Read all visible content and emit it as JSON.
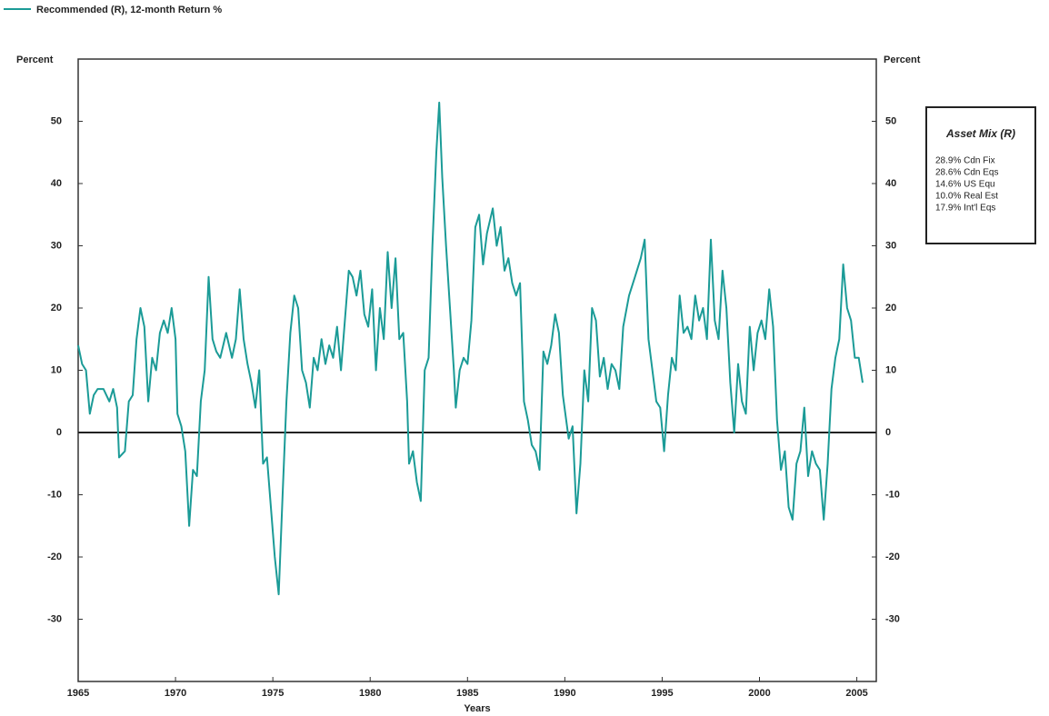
{
  "chart_data": {
    "type": "line",
    "legend_label": "Recommended (R), 12-month Return %",
    "y_label": "Percent",
    "y2_label": "Percent",
    "x_label": "Years",
    "xlim": [
      1965,
      2006
    ],
    "xticks": [
      1965,
      1970,
      1975,
      1980,
      1985,
      1990,
      1995,
      2000,
      2005
    ],
    "ylim": [
      -40,
      60
    ],
    "yticks": [
      -30,
      -20,
      -10,
      0,
      10,
      20,
      30,
      40,
      50
    ],
    "y2lim": [
      -40,
      60
    ],
    "y2ticks": [
      -30,
      -20,
      -10,
      0,
      10,
      20,
      30,
      40,
      50
    ],
    "annotation_box": {
      "title": "Asset Mix (R)",
      "lines": [
        "28.9% Cdn Fix",
        "28.6% Cdn Eqs",
        "14.6% US Equ",
        "10.0% Real Est",
        "17.9% Int'l Eqs"
      ]
    },
    "series": [
      {
        "name": "Recommended (R), 12-month Return %",
        "color": "#1b9b97",
        "x": [
          1965.0,
          1965.2,
          1965.4,
          1965.6,
          1965.8,
          1966.0,
          1966.3,
          1966.6,
          1966.8,
          1967.0,
          1967.1,
          1967.4,
          1967.6,
          1967.8,
          1968.0,
          1968.2,
          1968.4,
          1968.6,
          1968.8,
          1969.0,
          1969.2,
          1969.4,
          1969.6,
          1969.8,
          1970.0,
          1970.1,
          1970.3,
          1970.5,
          1970.7,
          1970.9,
          1971.1,
          1971.3,
          1971.5,
          1971.7,
          1971.9,
          1972.1,
          1972.3,
          1972.6,
          1972.9,
          1973.1,
          1973.3,
          1973.5,
          1973.7,
          1973.9,
          1974.1,
          1974.3,
          1974.5,
          1974.7,
          1974.9,
          1975.1,
          1975.3,
          1975.5,
          1975.7,
          1975.9,
          1976.1,
          1976.3,
          1976.5,
          1976.7,
          1976.9,
          1977.1,
          1977.3,
          1977.5,
          1977.7,
          1977.9,
          1978.1,
          1978.3,
          1978.5,
          1978.7,
          1978.9,
          1979.1,
          1979.3,
          1979.5,
          1979.7,
          1979.9,
          1980.1,
          1980.3,
          1980.5,
          1980.7,
          1980.9,
          1981.1,
          1981.3,
          1981.5,
          1981.7,
          1981.9,
          1982.0,
          1982.2,
          1982.4,
          1982.6,
          1982.8,
          1983.0,
          1983.2,
          1983.4,
          1983.55,
          1983.7,
          1983.9,
          1984.1,
          1984.3,
          1984.4,
          1984.6,
          1984.8,
          1985.0,
          1985.2,
          1985.4,
          1985.6,
          1985.8,
          1986.0,
          1986.3,
          1986.5,
          1986.7,
          1986.9,
          1987.1,
          1987.3,
          1987.5,
          1987.7,
          1987.9,
          1988.1,
          1988.3,
          1988.5,
          1988.7,
          1988.9,
          1989.1,
          1989.3,
          1989.5,
          1989.7,
          1989.9,
          1990.2,
          1990.4,
          1990.6,
          1990.8,
          1991.0,
          1991.2,
          1991.4,
          1991.6,
          1991.8,
          1992.0,
          1992.2,
          1992.4,
          1992.6,
          1992.8,
          1993.0,
          1993.3,
          1993.6,
          1993.9,
          1994.1,
          1994.3,
          1994.5,
          1994.7,
          1994.9,
          1995.1,
          1995.3,
          1995.5,
          1995.7,
          1995.9,
          1996.1,
          1996.3,
          1996.5,
          1996.7,
          1996.9,
          1997.1,
          1997.3,
          1997.5,
          1997.7,
          1997.9,
          1998.1,
          1998.3,
          1998.5,
          1998.7,
          1998.9,
          1999.1,
          1999.3,
          1999.5,
          1999.7,
          1999.9,
          2000.1,
          2000.3,
          2000.5,
          2000.7,
          2000.9,
          2001.1,
          2001.3,
          2001.5,
          2001.7,
          2001.9,
          2002.1,
          2002.3,
          2002.5,
          2002.7,
          2002.9,
          2003.1,
          2003.3,
          2003.5,
          2003.7,
          2003.9,
          2004.1,
          2004.3,
          2004.5,
          2004.7,
          2004.9,
          2005.1,
          2005.3
        ],
        "values": [
          14,
          11,
          10,
          3,
          6,
          7,
          7,
          5,
          7,
          4,
          -4,
          -3,
          5,
          6,
          15,
          20,
          17,
          5,
          12,
          10,
          16,
          18,
          16,
          20,
          15,
          3,
          1,
          -3,
          -15,
          -6,
          -7,
          5,
          10,
          25,
          15,
          13,
          12,
          16,
          12,
          15,
          23,
          15,
          11,
          8,
          4,
          10,
          -5,
          -4,
          -12,
          -20,
          -26,
          -10,
          5,
          16,
          22,
          20,
          10,
          8,
          4,
          12,
          10,
          15,
          11,
          14,
          12,
          17,
          10,
          18,
          26,
          25,
          22,
          26,
          19,
          17,
          23,
          10,
          20,
          15,
          29,
          20,
          28,
          15,
          16,
          5,
          -5,
          -3,
          -8,
          -11,
          10,
          12,
          30,
          45,
          53,
          41,
          30,
          20,
          10,
          4,
          10,
          12,
          11,
          18,
          33,
          35,
          27,
          32,
          36,
          30,
          33,
          26,
          28,
          24,
          22,
          24,
          5,
          2,
          -2,
          -3,
          -6,
          13,
          11,
          14,
          19,
          16,
          6,
          -1,
          1,
          -13,
          -5,
          10,
          5,
          20,
          18,
          9,
          12,
          7,
          11,
          10,
          7,
          17,
          22,
          25,
          28,
          31,
          15,
          10,
          5,
          4,
          -3,
          6,
          12,
          10,
          22,
          16,
          17,
          15,
          22,
          18,
          20,
          15,
          31,
          18,
          15,
          26,
          20,
          8,
          0,
          11,
          5,
          3,
          17,
          10,
          16,
          18,
          15,
          23,
          17,
          2,
          -6,
          -3,
          -12,
          -14,
          -5,
          -3,
          4,
          -7,
          -3,
          -5,
          -6,
          -14,
          -5,
          7,
          12,
          15,
          27,
          20,
          18,
          12,
          12,
          8
        ]
      }
    ]
  }
}
